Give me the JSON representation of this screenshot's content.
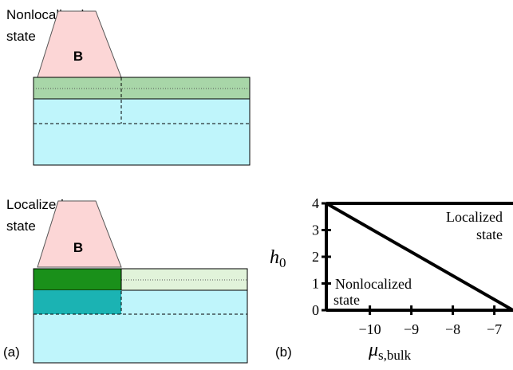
{
  "diagram": {
    "top": {
      "caption": [
        "Nonlocalized",
        "state"
      ],
      "block": "B"
    },
    "bottom": {
      "caption": [
        "Localized",
        "state"
      ],
      "block": "B"
    },
    "panel_a": "(a)",
    "panel_b": "(b)"
  },
  "chart_data": {
    "type": "line",
    "ylabel": "h",
    "ylabel_sub": "0",
    "xlabel": "μ",
    "xlabel_sub": "s,bulk",
    "series": [
      {
        "color": "#000000",
        "x": [
          -11.05,
          -6.55
        ],
        "values": [
          4,
          0
        ]
      }
    ],
    "annotations": [
      [
        "Localized",
        "state"
      ],
      [
        "Nonlocalized",
        "state"
      ]
    ],
    "xlim": [
      -11.05,
      -6.55
    ],
    "ylim": [
      0,
      4
    ],
    "xticks": [
      {
        "value": -10,
        "label": "−10"
      },
      {
        "value": -9,
        "label": "−9"
      },
      {
        "value": -8,
        "label": "−8"
      },
      {
        "value": -7,
        "label": "−7"
      }
    ],
    "yticks": [
      0,
      1,
      2,
      3,
      4
    ]
  }
}
